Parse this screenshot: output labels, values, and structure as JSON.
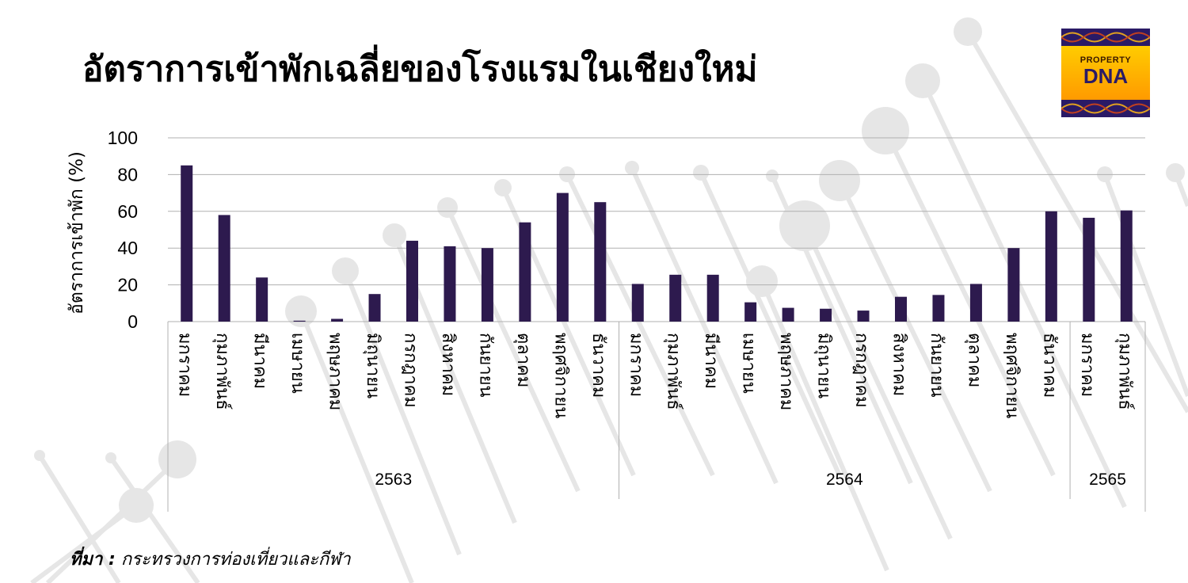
{
  "title": "อัตราการเข้าพักเฉลี่ยของโรงแรมในเชียงใหม่",
  "logo": {
    "line1": "PROPERTY",
    "line2": "DNA"
  },
  "source": {
    "label": "ที่มา :",
    "text": "กระทรวงการท่องเที่ยวและกีฬา"
  },
  "chart_data": {
    "type": "bar",
    "ylabel": "อัตราการเข้าพัก (%)",
    "ylim": [
      0,
      100
    ],
    "yticks": [
      0,
      20,
      40,
      60,
      80,
      100
    ],
    "grid": true,
    "bar_color": "#2d1a4e",
    "categories": [
      "มกราคม",
      "กุมภาพันธ์",
      "มีนาคม",
      "เมษายน",
      "พฤษภาคม",
      "มิถุนายน",
      "กรกฎาคม",
      "สิงหาคม",
      "กันยายน",
      "ตุลาคม",
      "พฤศจิกายน",
      "ธันวาคม",
      "มกราคม",
      "กุมภาพันธ์",
      "มีนาคม",
      "เมษายน",
      "พฤษภาคม",
      "มิถุนายน",
      "กรกฎาคม",
      "สิงหาคม",
      "กันยายน",
      "ตุลาคม",
      "พฤศจิกายน",
      "ธันวาคม",
      "มกราคม",
      "กุมภาพันธ์"
    ],
    "values": [
      85,
      58,
      24,
      0.5,
      1.5,
      15,
      44,
      41,
      40,
      54,
      70,
      65,
      20.5,
      25.5,
      25.5,
      10.5,
      7.5,
      7,
      6,
      13.5,
      14.5,
      20.5,
      40,
      60,
      56.5,
      60.5
    ],
    "groups": [
      {
        "label": "2563",
        "count": 12
      },
      {
        "label": "2564",
        "count": 12
      },
      {
        "label": "2565",
        "count": 2
      }
    ]
  }
}
